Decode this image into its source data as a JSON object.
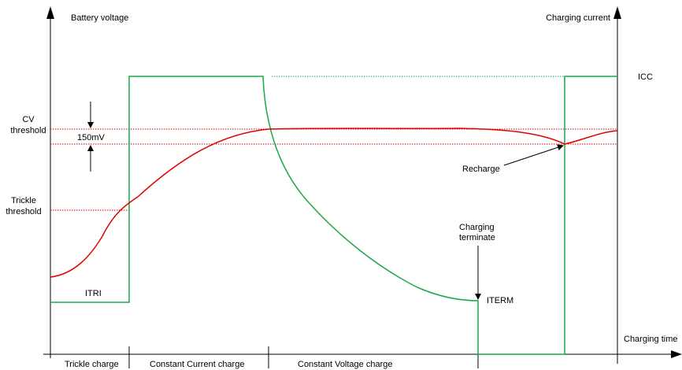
{
  "labels": {
    "left_axis_title": "Battery voltage",
    "right_axis_title": "Charging current",
    "x_axis_title": "Charging time",
    "cv_threshold": [
      "CV",
      "threshold"
    ],
    "trickle_threshold": [
      "Trickle",
      "threshold"
    ],
    "delta_voltage": "150mV",
    "icc": "ICC",
    "itri": "ITRI",
    "iterm": "ITERM",
    "recharge": "Recharge",
    "charging_terminate": [
      "Charging",
      "terminate"
    ]
  },
  "phases": [
    "Trickle charge",
    "Constant Current charge",
    "Constant Voltage charge"
  ],
  "colors": {
    "voltage_curve": "#e00000",
    "current_curve": "#1aa84a",
    "threshold_line": "#e00000",
    "axis": "#000000"
  }
}
